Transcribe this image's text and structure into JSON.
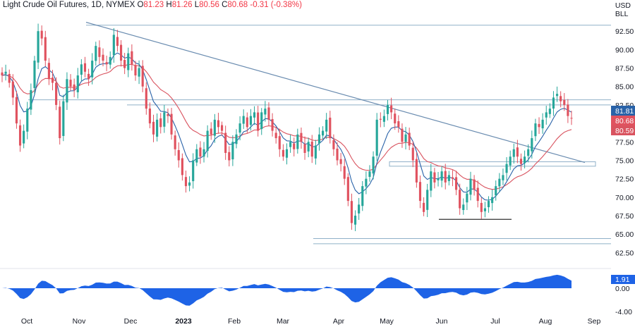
{
  "header": {
    "symbol": "Light Crude Oil Futures, 1D, NYMEX",
    "open_label": "O",
    "open": "81.23",
    "high_label": "H",
    "high": "81.26",
    "low_label": "L",
    "low": "80.56",
    "close_label": "C",
    "close": "80.68",
    "change": "-0.31 (-0.38%)"
  },
  "currency": {
    "line1": "USD",
    "line2": "BLL"
  },
  "colors": {
    "up": "#26a69a",
    "down": "#e0525f",
    "ma_fast": "#2962a8",
    "ma_slow": "#d9535f",
    "oscillator": "#1e63e6",
    "levels": "#8fb0c8",
    "trendline": "#6a8cb0",
    "support": "#333333"
  },
  "chart_data": {
    "type": "candlestick",
    "instrument": "Light Crude Oil Futures",
    "timeframe": "1D",
    "y_axis": {
      "ticks": [
        "92.50",
        "90.00",
        "87.50",
        "85.00",
        "82.50",
        "77.50",
        "75.00",
        "72.50",
        "70.00",
        "67.50",
        "65.00",
        "62.50"
      ],
      "range": [
        61.2,
        95.0
      ]
    },
    "x_axis": {
      "labels": [
        "Oct",
        "Nov",
        "Dec",
        "2023",
        "Feb",
        "Mar",
        "Apr",
        "May",
        "Jun",
        "Jul",
        "Aug",
        "Sep"
      ]
    },
    "price_badges": [
      {
        "value": "81.81",
        "color": "#2962a8"
      },
      {
        "value": "80.68",
        "color": "#e0525f"
      },
      {
        "value": "80.59",
        "color": "#d9535f"
      }
    ],
    "horizontal_levels": [
      93.3,
      83.2,
      82.5,
      74.8,
      74.2,
      64.4,
      63.7
    ],
    "trendline": {
      "from": {
        "date": "early Nov 2022",
        "price": 93.7
      },
      "to": {
        "date": "end Aug 2023",
        "price": 74.7
      }
    },
    "support_line": {
      "price": 67.0,
      "from": "late May 2023",
      "to": "early Jul 2023"
    },
    "closes": [
      86.5,
      87.0,
      85.5,
      83.5,
      80.0,
      77.0,
      79.0,
      82.0,
      84.5,
      88.5,
      92.5,
      91.5,
      88.5,
      86.0,
      85.5,
      82.5,
      78.0,
      83.0,
      86.0,
      85.0,
      84.5,
      86.5,
      88.0,
      87.0,
      86.0,
      88.5,
      90.5,
      89.0,
      88.5,
      88.0,
      89.0,
      92.0,
      90.5,
      88.5,
      87.5,
      89.5,
      88.0,
      86.5,
      87.5,
      85.0,
      82.0,
      80.0,
      78.5,
      80.5,
      79.5,
      81.5,
      81.0,
      78.5,
      76.5,
      75.0,
      73.0,
      71.5,
      72.0,
      75.0,
      76.5,
      75.5,
      76.5,
      79.0,
      78.5,
      80.5,
      79.5,
      79.0,
      76.0,
      75.0,
      77.5,
      78.5,
      80.0,
      81.0,
      79.5,
      81.0,
      81.5,
      79.0,
      81.5,
      82.0,
      80.5,
      79.0,
      78.0,
      76.5,
      75.5,
      76.5,
      77.5,
      76.5,
      78.5,
      77.5,
      76.0,
      77.5,
      75.5,
      77.0,
      78.5,
      79.0,
      80.5,
      78.0,
      76.5,
      75.0,
      74.5,
      72.5,
      69.5,
      66.5,
      67.5,
      69.0,
      71.5,
      72.5,
      73.5,
      75.5,
      80.5,
      80.5,
      81.0,
      82.5,
      81.5,
      80.0,
      79.5,
      77.5,
      78.5,
      77.0,
      75.0,
      72.0,
      69.5,
      68.0,
      71.0,
      73.5,
      72.0,
      72.5,
      73.5,
      72.0,
      73.0,
      72.5,
      71.0,
      68.5,
      69.0,
      70.5,
      72.5,
      71.0,
      69.5,
      68.0,
      68.5,
      69.5,
      70.0,
      71.5,
      72.5,
      73.0,
      74.5,
      75.5,
      76.5,
      75.5,
      74.5,
      75.5,
      76.5,
      78.0,
      80.0,
      79.5,
      80.5,
      81.5,
      82.0,
      83.5,
      84.0,
      83.0,
      82.5,
      81.0,
      80.68
    ],
    "oscillator": {
      "current": "1.91",
      "ticks": [
        "0.00",
        "-4.00"
      ]
    }
  }
}
